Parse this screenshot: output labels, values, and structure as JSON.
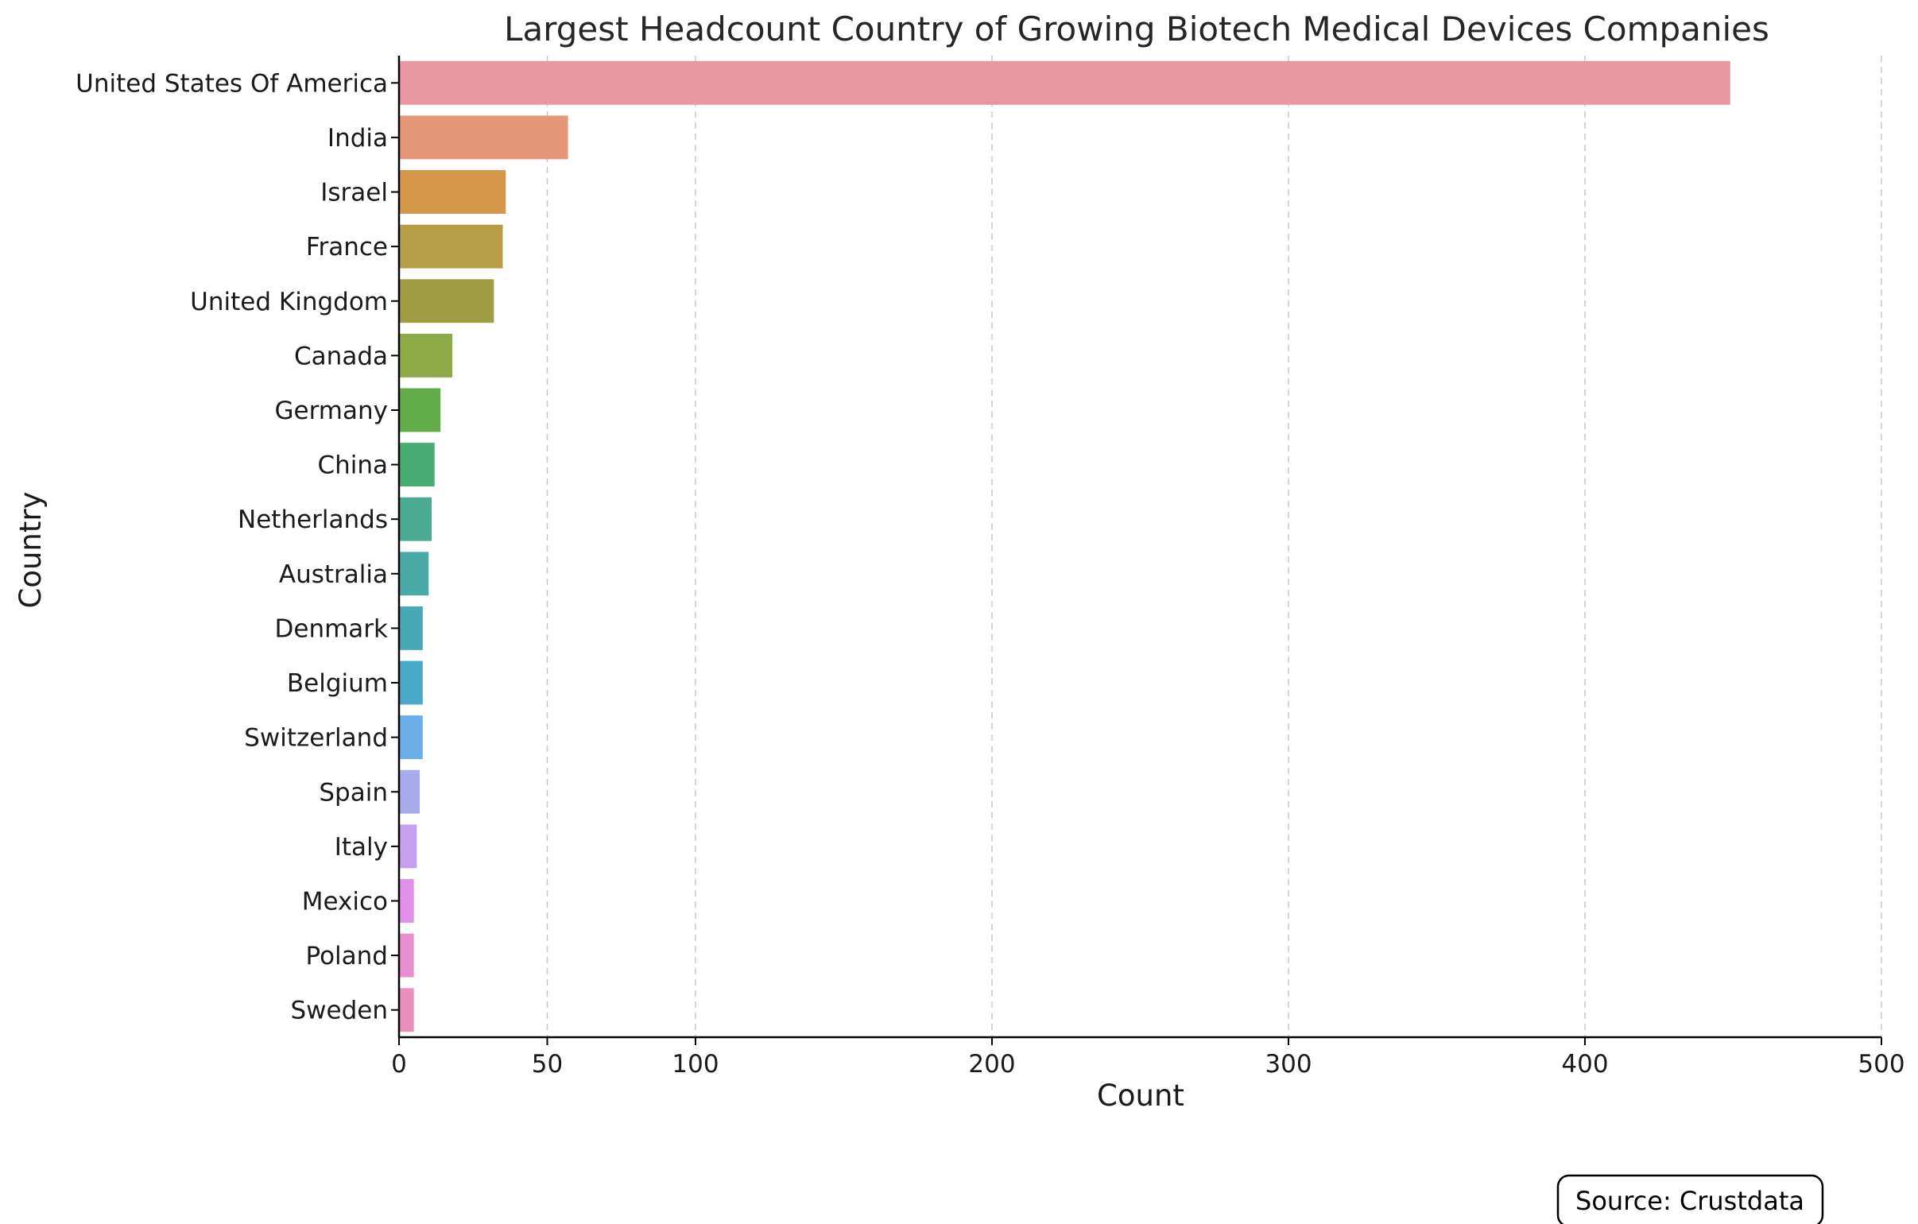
{
  "chart_data": {
    "type": "bar",
    "orientation": "horizontal",
    "title": "Largest Headcount Country of Growing Biotech Medical Devices Companies",
    "xlabel": "Count",
    "ylabel": "Country",
    "xlim": [
      0,
      500
    ],
    "xticks": [
      0,
      50,
      100,
      200,
      300,
      400,
      500
    ],
    "grid": "x-dashed",
    "categories": [
      "United States Of America",
      "India",
      "Israel",
      "France",
      "United Kingdom",
      "Canada",
      "Germany",
      "China",
      "Netherlands",
      "Australia",
      "Denmark",
      "Belgium",
      "Switzerland",
      "Spain",
      "Italy",
      "Mexico",
      "Poland",
      "Sweden"
    ],
    "values": [
      449,
      57,
      36,
      35,
      32,
      18,
      14,
      12,
      11,
      10,
      8,
      8,
      8,
      7,
      6,
      5,
      5,
      5
    ],
    "colors": [
      "#e995a2",
      "#e6977a",
      "#d49649",
      "#b69e47",
      "#a09e45",
      "#8daa46",
      "#62ad47",
      "#48ab72",
      "#4aab92",
      "#4aaba6",
      "#48a8b4",
      "#49a9c6",
      "#69aee6",
      "#a8aaed",
      "#c5a0ee",
      "#e18fe9",
      "#e98fd0",
      "#ea8fbb"
    ]
  },
  "source_label": "Source: Crustdata"
}
